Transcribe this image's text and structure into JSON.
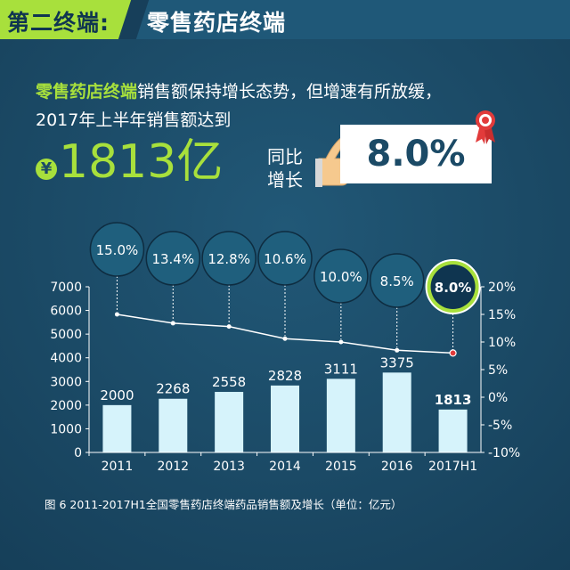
{
  "header": {
    "left": "第二终端:",
    "right": "零售药店终端"
  },
  "headline": {
    "highlight": "零售药店终端",
    "line1_rest": "销售额保持增长态势，但增速有所放缓，",
    "line2": "2017年上半年销售额达到",
    "currency_symbol": "¥",
    "big_value": "1813亿",
    "yoy_label_1": "同比",
    "yoy_label_2": "增长",
    "yoy_value": "8.0%"
  },
  "caption": "图 6  2011-2017H1全国零售药店终端药品销售额及增长（单位：亿元）",
  "colors": {
    "background": "#1b4a66",
    "accent_green": "#a8e03c",
    "bar_fill": "#d6f3fb",
    "bubble_fill": "#1f5f7d",
    "highlight_bubble": "#a8e03c",
    "marker_red": "#e23b3b"
  },
  "icons": [
    "yen-icon",
    "hand-icon",
    "award-badge-icon"
  ],
  "chart_data": {
    "type": "bar",
    "categories": [
      "2011",
      "2012",
      "2013",
      "2014",
      "2015",
      "2016",
      "2017H1"
    ],
    "series": [
      {
        "values": [
          2000,
          2268,
          2558,
          2828,
          3111,
          3375,
          1813
        ],
        "labels": [
          "2000",
          "2268",
          "2558",
          "2828",
          "3111",
          "3375",
          "1813"
        ]
      },
      {
        "type": "line",
        "axis": "right",
        "values": [
          15.0,
          13.4,
          12.8,
          10.6,
          10.0,
          8.5,
          8.0
        ],
        "labels": [
          "15.0%",
          "13.4%",
          "12.8%",
          "10.6%",
          "10.0%",
          "8.5%",
          "8.0%"
        ]
      }
    ],
    "ylim": [
      0,
      7000
    ],
    "yticks": [
      "0",
      "1000",
      "2000",
      "3000",
      "4000",
      "5000",
      "6000",
      "7000"
    ],
    "y2lim": [
      -10,
      20
    ],
    "y2ticks": [
      "-10%",
      "-5%",
      "0%",
      "5%",
      "10%",
      "15%",
      "20%"
    ],
    "grid": false
  }
}
